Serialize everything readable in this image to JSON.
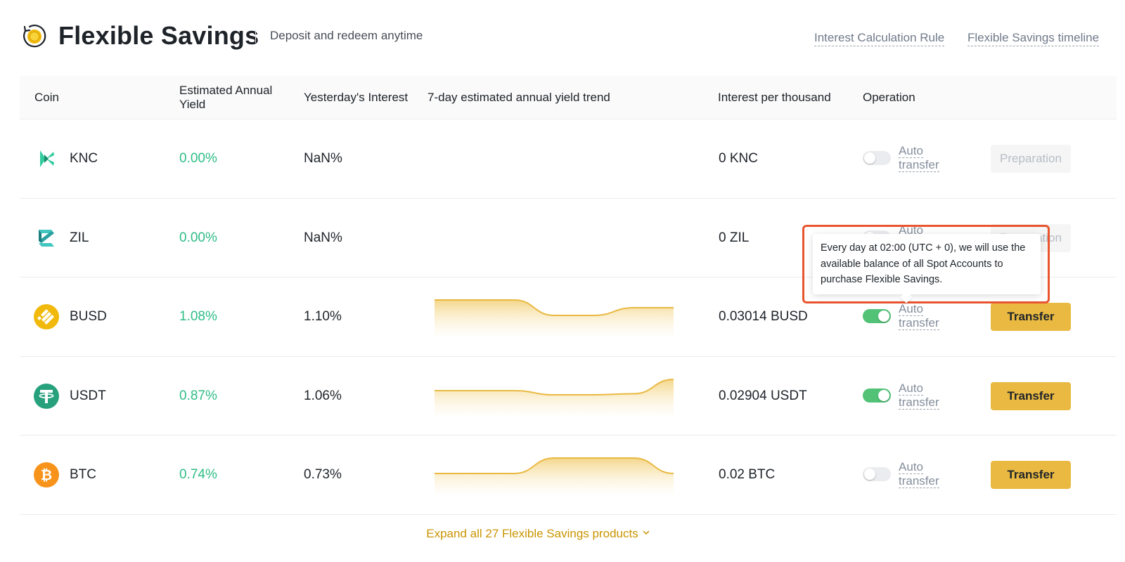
{
  "header": {
    "title": "Flexible Savings",
    "subtitle": "Deposit and redeem anytime",
    "links": {
      "interest_rule": "Interest Calculation Rule",
      "timeline": "Flexible Savings timeline"
    }
  },
  "table": {
    "columns": {
      "coin": "Coin",
      "apy_line1": "Estimated Annual",
      "apy_line2": "Yield",
      "yesterday": "Yesterday's Interest",
      "trend": "7-day estimated annual yield trend",
      "per_thousand": "Interest per thousand",
      "operation": "Operation"
    },
    "rows": [
      {
        "coin": "KNC",
        "icon": "knc-coin-icon",
        "apy": "0.00%",
        "yesterday": "NaN%",
        "per_thousand": "0 KNC",
        "auto_line1": "Auto",
        "auto_line2": "transfer",
        "auto_on": false,
        "button": "Preparation",
        "button_enabled": false,
        "trend": []
      },
      {
        "coin": "ZIL",
        "icon": "zil-coin-icon",
        "apy": "0.00%",
        "yesterday": "NaN%",
        "per_thousand": "0 ZIL",
        "auto_line1": "Auto",
        "auto_line2": "transfer",
        "auto_on": false,
        "button": "Preparation",
        "button_enabled": false,
        "trend": []
      },
      {
        "coin": "BUSD",
        "icon": "busd-coin-icon",
        "apy": "1.08%",
        "yesterday": "1.10%",
        "per_thousand": "0.03014 BUSD",
        "auto_line1": "Auto",
        "auto_line2": "transfer",
        "auto_on": true,
        "button": "Transfer",
        "button_enabled": true,
        "trend": [
          1.1,
          1.1,
          1.1,
          1.08,
          1.08,
          1.09,
          1.09
        ]
      },
      {
        "coin": "USDT",
        "icon": "usdt-coin-icon",
        "apy": "0.87%",
        "yesterday": "1.06%",
        "per_thousand": "0.02904 USDT",
        "auto_line1": "Auto",
        "auto_line2": "transfer",
        "auto_on": true,
        "button": "Transfer",
        "button_enabled": true,
        "trend": [
          0.95,
          0.95,
          0.95,
          0.91,
          0.91,
          0.92,
          1.06
        ]
      },
      {
        "coin": "BTC",
        "icon": "btc-coin-icon",
        "apy": "0.74%",
        "yesterday": "0.73%",
        "per_thousand": "0.02 BTC",
        "auto_line1": "Auto",
        "auto_line2": "transfer",
        "auto_on": false,
        "button": "Transfer",
        "button_enabled": true,
        "trend": [
          0.73,
          0.73,
          0.73,
          0.735,
          0.735,
          0.735,
          0.73
        ]
      }
    ]
  },
  "expand_label": "Expand all 27 Flexible Savings products",
  "tooltip": {
    "text": "Every day at 02:00 (UTC + 0), we will use the available balance of all Spot Accounts to purchase Flexible Savings."
  },
  "colors": {
    "accent": "#e9b942",
    "positive": "#2ebd85",
    "toggle_on": "#52c277",
    "highlight_frame": "#e8552f"
  }
}
